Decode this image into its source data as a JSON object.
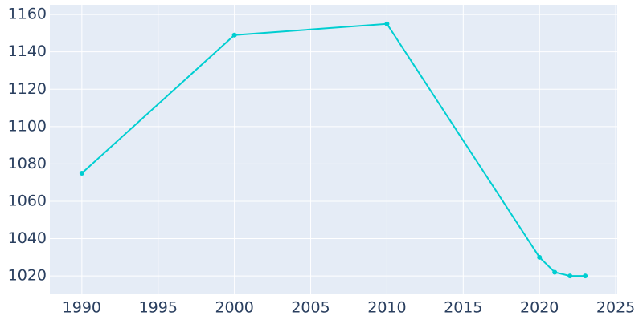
{
  "chart_data": {
    "type": "line",
    "x": [
      1990,
      2000,
      2010,
      2020,
      2021,
      2022,
      2023
    ],
    "series": [
      {
        "color": "#00ced1",
        "values": [
          1075,
          1149,
          1155,
          1030,
          1022,
          1020,
          1020
        ]
      }
    ],
    "xlim": [
      1987.9,
      2025.1
    ],
    "xticks": [
      1990,
      1995,
      2000,
      2005,
      2010,
      2015,
      2020,
      2025
    ],
    "ylim": [
      1010.6,
      1165.2
    ],
    "yticks": [
      1020,
      1040,
      1060,
      1080,
      1100,
      1120,
      1140,
      1160
    ],
    "grid": true,
    "background": "#e5ecf6"
  }
}
